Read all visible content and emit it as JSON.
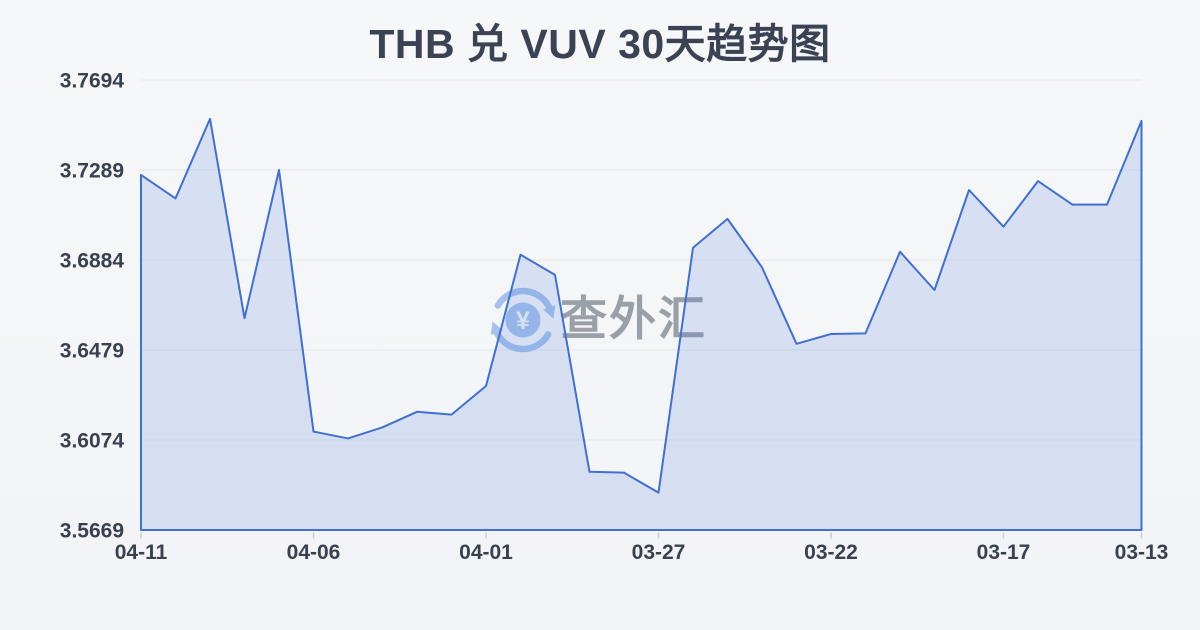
{
  "header": {
    "title": "THB 兑 VUV 30天趋势图"
  },
  "watermark": {
    "brand": "查外汇",
    "currency_symbol": "¥",
    "icon": "currency-exchange-icon",
    "icon_color": "#a6c1ed",
    "text_color": "#9aa0a8"
  },
  "chart_data": {
    "type": "area",
    "title": "THB 兑 VUV 30天趋势图",
    "xlabel": "",
    "ylabel": "",
    "x_reversed_dates": true,
    "dates": [
      "04-11",
      "04-10",
      "04-09",
      "04-08",
      "04-07",
      "04-06",
      "04-05",
      "04-04",
      "04-03",
      "04-02",
      "04-01",
      "03-31",
      "03-30",
      "03-29",
      "03-28",
      "03-27",
      "03-26",
      "03-25",
      "03-24",
      "03-23",
      "03-22",
      "03-21",
      "03-20",
      "03-19",
      "03-18",
      "03-17",
      "03-16",
      "03-15",
      "03-14",
      "03-13"
    ],
    "values": [
      3.7267,
      3.7161,
      3.7519,
      3.6622,
      3.7289,
      3.6112,
      3.6081,
      3.6131,
      3.6201,
      3.6188,
      3.6317,
      3.6908,
      3.6817,
      3.5931,
      3.5927,
      3.5837,
      3.6939,
      3.7069,
      3.6851,
      3.6507,
      3.6551,
      3.6554,
      3.6921,
      3.6749,
      3.7199,
      3.7034,
      3.7239,
      3.7133,
      3.7133,
      3.751
    ],
    "y_ticks": [
      3.7694,
      3.7289,
      3.6884,
      3.6479,
      3.6074,
      3.5669
    ],
    "ylim": [
      3.5669,
      3.7694
    ],
    "x_tick_labels": [
      "04-11",
      "04-06",
      "04-01",
      "03-27",
      "03-22",
      "03-17",
      "03-13"
    ],
    "x_tick_indices": [
      0,
      5,
      10,
      15,
      20,
      25,
      29
    ],
    "grid": true,
    "legend": false,
    "line_color": "#3f70d2",
    "fill_color": "rgba(62,111,209,0.16)",
    "grid_color": "#e5e7eb",
    "tick_color": "#c9ccd3",
    "label_color": "#39414f"
  }
}
